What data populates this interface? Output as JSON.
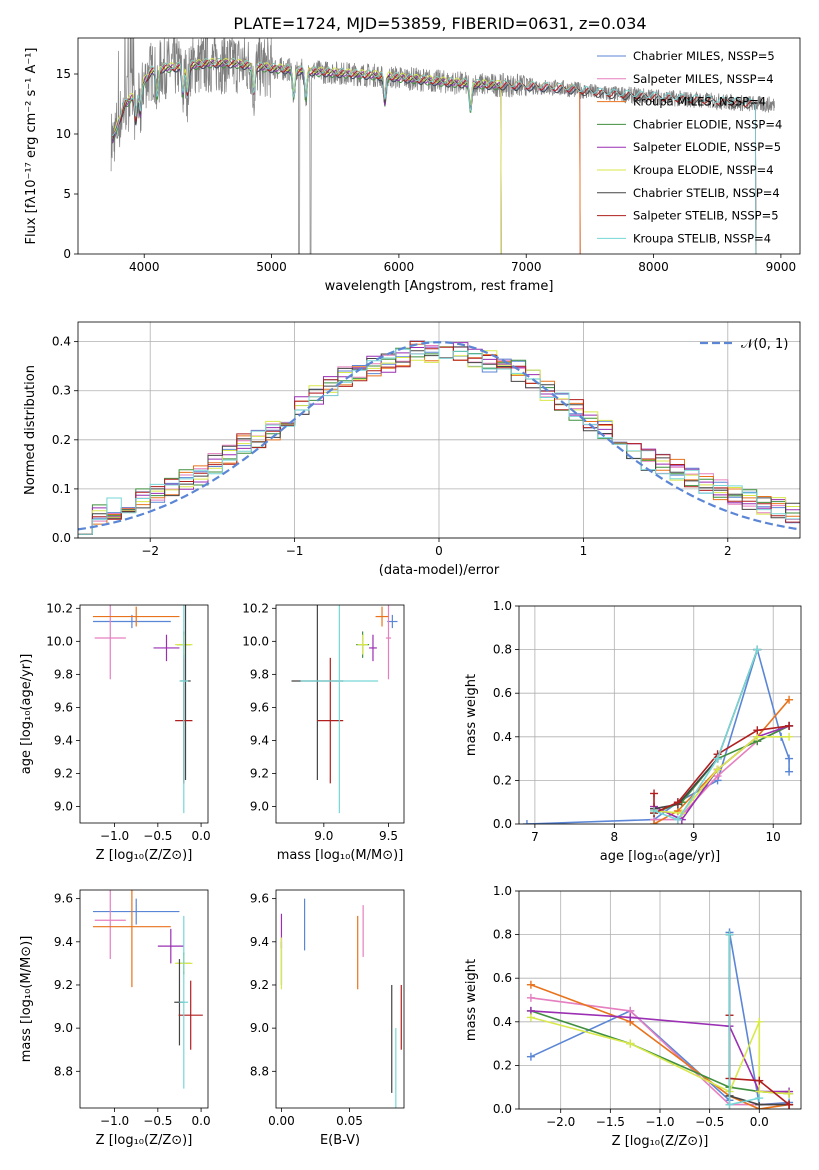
{
  "title": "PLATE=1724, MJD=53859, FIBERID=0631, z=0.034",
  "colors": {
    "Chabrier MILES": "#5b86d6",
    "Salpeter MILES": "#e57fbf",
    "Kroupa MILES": "#e8731c",
    "Chabrier ELODIE": "#3f8f3f",
    "Salpeter ELODIE": "#9a2fb3",
    "Kroupa ELODIE": "#d9e84a",
    "Chabrier STELIB": "#444444",
    "Salpeter STELIB": "#b01e1e",
    "Kroupa STELIB": "#77d6d6",
    "data": "#7f7f7f",
    "normal": "#5b86d6"
  },
  "chart_data": [
    {
      "type": "line",
      "id": "spectrum",
      "xlabel": "wavelength [Angstrom, rest frame]",
      "ylabel": "Flux [f_λ10^-17 erg cm^-2 s^-1 A^-1]",
      "xlim": [
        3480,
        9150
      ],
      "ylim": [
        0,
        18
      ],
      "xticks": [
        4000,
        5000,
        6000,
        7000,
        8000,
        9000
      ],
      "yticks": [
        0,
        5,
        10,
        15
      ],
      "legend_position": "top-right",
      "legend": [
        {
          "name": "Chabrier MILES",
          "label": "Chabrier MILES, N_SSP=5"
        },
        {
          "name": "Salpeter MILES",
          "label": "Salpeter MILES, N_SSP=4"
        },
        {
          "name": "Kroupa MILES",
          "label": "Kroupa MILES, N_SSP=4"
        },
        {
          "name": "Chabrier ELODIE",
          "label": "Chabrier ELODIE, N_SSP=4"
        },
        {
          "name": "Salpeter ELODIE",
          "label": "Salpeter ELODIE, N_SSP=5"
        },
        {
          "name": "Kroupa ELODIE",
          "label": "Kroupa ELODIE, N_SSP=4"
        },
        {
          "name": "Chabrier STELIB",
          "label": "Chabrier STELIB, N_SSP=4"
        },
        {
          "name": "Salpeter STELIB",
          "label": "Salpeter STELIB, N_SSP=5"
        },
        {
          "name": "Kroupa STELIB",
          "label": "Kroupa STELIB, N_SSP=4"
        }
      ],
      "continuum": [
        [
          3750,
          9.5
        ],
        [
          3850,
          12.5
        ],
        [
          3950,
          13.5
        ],
        [
          4050,
          15.2
        ],
        [
          4150,
          15.5
        ],
        [
          4300,
          15.6
        ],
        [
          4500,
          15.9
        ],
        [
          4700,
          15.9
        ],
        [
          4900,
          15.6
        ],
        [
          5200,
          15.3
        ],
        [
          5500,
          15.1
        ],
        [
          5800,
          14.9
        ],
        [
          6100,
          14.6
        ],
        [
          6400,
          14.3
        ],
        [
          6700,
          14.1
        ],
        [
          7000,
          14.0
        ],
        [
          7300,
          13.8
        ],
        [
          7600,
          13.4
        ],
        [
          8000,
          13.1
        ],
        [
          8400,
          12.8
        ],
        [
          8800,
          12.5
        ],
        [
          9000,
          12.4
        ]
      ],
      "model_ranges": {
        "Chabrier MILES": [
          3750,
          7420
        ],
        "Salpeter MILES": [
          3750,
          7420
        ],
        "Kroupa MILES": [
          3750,
          7420
        ],
        "Chabrier ELODIE": [
          3750,
          6800
        ],
        "Salpeter ELODIE": [
          3750,
          6800
        ],
        "Kroupa ELODIE": [
          3750,
          6800
        ],
        "Chabrier STELIB": [
          3750,
          8800
        ],
        "Salpeter STELIB": [
          3750,
          8800
        ],
        "Kroupa STELIB": [
          3750,
          8800
        ]
      },
      "data_range": [
        3740,
        8950
      ]
    },
    {
      "type": "histogram",
      "id": "residuals",
      "xlabel": "(data-model)/error",
      "ylabel": "Normed distribution",
      "xlim": [
        -2.5,
        2.5
      ],
      "ylim": [
        0,
        0.44
      ],
      "xticks": [
        -2,
        -1,
        0,
        1,
        2
      ],
      "yticks": [
        0.0,
        0.1,
        0.2,
        0.3,
        0.4
      ],
      "bin_width": 0.1,
      "legend_position": "top-right",
      "legend_label": "𝒩(0, 1)",
      "envelope": [
        0.03,
        0.05,
        0.06,
        0.07,
        0.08,
        0.09,
        0.1,
        0.12,
        0.13,
        0.15,
        0.17,
        0.19,
        0.2,
        0.22,
        0.24,
        0.27,
        0.29,
        0.31,
        0.33,
        0.34,
        0.35,
        0.36,
        0.37,
        0.38,
        0.38,
        0.38,
        0.38,
        0.37,
        0.36,
        0.35,
        0.34,
        0.32,
        0.3,
        0.28,
        0.26,
        0.24,
        0.22,
        0.2,
        0.18,
        0.16,
        0.15,
        0.14,
        0.12,
        0.11,
        0.1,
        0.09,
        0.08,
        0.07,
        0.06,
        0.05
      ]
    },
    {
      "type": "errorbar",
      "id": "age-vs-Z",
      "xlabel": "Z [log10(Z/Z⊙)]",
      "ylabel": "age [log10(age/yr)]",
      "xlim": [
        -1.4,
        0.08
      ],
      "ylim": [
        8.9,
        10.22
      ],
      "xticks": [
        -1.0,
        -0.5,
        0.0
      ],
      "yticks": [
        9.0,
        9.2,
        9.4,
        9.6,
        9.8,
        10.0,
        10.2
      ],
      "points": [
        {
          "name": "Chabrier MILES",
          "x": -0.8,
          "xerr": 0.45,
          "y": 10.12,
          "yerr": 0.04
        },
        {
          "name": "Salpeter MILES",
          "x": -1.05,
          "xerr": 0.18,
          "y": 10.02,
          "yerr": 0.25
        },
        {
          "name": "Kroupa MILES",
          "x": -0.75,
          "xerr": 0.5,
          "y": 10.15,
          "yerr": 0.06
        },
        {
          "name": "Chabrier ELODIE",
          "x": -0.2,
          "xerr": 0.08,
          "y": 9.98,
          "yerr": 0.08
        },
        {
          "name": "Salpeter ELODIE",
          "x": -0.4,
          "xerr": 0.15,
          "y": 9.96,
          "yerr": 0.08
        },
        {
          "name": "Kroupa ELODIE",
          "x": -0.2,
          "xerr": 0.1,
          "y": 9.98,
          "yerr": 0.06
        },
        {
          "name": "Chabrier STELIB",
          "x": -0.18,
          "xerr": 0.06,
          "y": 9.76,
          "yerr": 0.6
        },
        {
          "name": "Salpeter STELIB",
          "x": -0.2,
          "xerr": 0.1,
          "y": 9.52,
          "yerr": 0.38
        },
        {
          "name": "Kroupa STELIB",
          "x": -0.2,
          "xerr": 0.05,
          "y": 9.76,
          "yerr": 0.8
        }
      ]
    },
    {
      "type": "errorbar",
      "id": "age-vs-mass",
      "xlabel": "mass [log10(M/M⊙)]",
      "ylabel": "",
      "xlim": [
        8.63,
        9.62
      ],
      "ylim": [
        8.9,
        10.22
      ],
      "xticks": [
        9.0,
        9.5
      ],
      "yticks": [
        9.0,
        9.2,
        9.4,
        9.6,
        9.8,
        10.0,
        10.2
      ],
      "points": [
        {
          "name": "Chabrier MILES",
          "x": 9.53,
          "xerr": 0.04,
          "y": 10.12,
          "yerr": 0.04
        },
        {
          "name": "Salpeter MILES",
          "x": 9.5,
          "xerr": 0.02,
          "y": 10.02,
          "yerr": 0.25
        },
        {
          "name": "Kroupa MILES",
          "x": 9.45,
          "xerr": 0.05,
          "y": 10.15,
          "yerr": 0.06
        },
        {
          "name": "Chabrier ELODIE",
          "x": 9.3,
          "xerr": 0.05,
          "y": 9.98,
          "yerr": 0.08
        },
        {
          "name": "Salpeter ELODIE",
          "x": 9.38,
          "xerr": 0.03,
          "y": 9.96,
          "yerr": 0.08
        },
        {
          "name": "Kroupa ELODIE",
          "x": 9.3,
          "xerr": 0.04,
          "y": 9.98,
          "yerr": 0.06
        },
        {
          "name": "Chabrier STELIB",
          "x": 8.95,
          "xerr": 0.2,
          "y": 9.76,
          "yerr": 0.6
        },
        {
          "name": "Salpeter STELIB",
          "x": 9.05,
          "xerr": 0.1,
          "y": 9.52,
          "yerr": 0.38
        },
        {
          "name": "Kroupa STELIB",
          "x": 9.12,
          "xerr": 0.3,
          "y": 9.76,
          "yerr": 0.8
        }
      ]
    },
    {
      "type": "line",
      "id": "weight-vs-age",
      "xlabel": "age [log10(age/yr)]",
      "ylabel": "mass weight",
      "xlim": [
        6.8,
        10.35
      ],
      "ylim": [
        0,
        1
      ],
      "xticks": [
        7,
        8,
        9,
        10
      ],
      "yticks": [
        0.0,
        0.2,
        0.4,
        0.6,
        0.8,
        1.0
      ],
      "series": [
        {
          "name": "Chabrier MILES",
          "x": [
            6.9,
            8.5,
            8.8,
            9.3,
            9.8,
            10.1,
            10.2,
            10.2
          ],
          "y": [
            0.0,
            0.02,
            0.1,
            0.2,
            0.8,
            0.4,
            0.3,
            0.24
          ]
        },
        {
          "name": "Salpeter MILES",
          "x": [
            8.5,
            8.8,
            9.3,
            9.8,
            10.2
          ],
          "y": [
            0.02,
            0.02,
            0.22,
            0.38,
            0.45
          ]
        },
        {
          "name": "Kroupa MILES",
          "x": [
            8.5,
            8.8,
            9.3,
            9.8,
            10.2
          ],
          "y": [
            0.0,
            0.06,
            0.25,
            0.4,
            0.57
          ]
        },
        {
          "name": "Chabrier ELODIE",
          "x": [
            8.5,
            8.85,
            9.3,
            9.8,
            10.2
          ],
          "y": [
            0.05,
            0.1,
            0.3,
            0.38,
            0.45
          ]
        },
        {
          "name": "Salpeter ELODIE",
          "x": [
            8.5,
            8.85,
            9.3,
            9.8,
            10.2
          ],
          "y": [
            0.08,
            0.02,
            0.25,
            0.4,
            0.45
          ]
        },
        {
          "name": "Kroupa ELODIE",
          "x": [
            8.5,
            8.85,
            9.3,
            9.8,
            10.2
          ],
          "y": [
            0.06,
            0.05,
            0.25,
            0.4,
            0.4
          ]
        },
        {
          "name": "Chabrier STELIB",
          "x": [
            8.5,
            8.8,
            9.3,
            9.8
          ],
          "y": [
            0.07,
            0.09,
            0.3,
            0.8
          ]
        },
        {
          "name": "Salpeter STELIB",
          "x": [
            8.5,
            8.5,
            8.8,
            9.3,
            9.8,
            10.2
          ],
          "y": [
            0.14,
            0.05,
            0.1,
            0.32,
            0.43,
            0.45
          ]
        },
        {
          "name": "Kroupa STELIB",
          "x": [
            8.5,
            8.8,
            9.3,
            9.8
          ],
          "y": [
            0.06,
            0.02,
            0.3,
            0.8
          ]
        }
      ]
    },
    {
      "type": "errorbar",
      "id": "mass-vs-Z",
      "xlabel": "Z [log10(Z/Z⊙)]",
      "ylabel": "mass [log10(M/M⊙)]",
      "xlim": [
        -1.4,
        0.08
      ],
      "ylim": [
        8.63,
        9.64
      ],
      "xticks": [
        -1.0,
        -0.5,
        0.0
      ],
      "yticks": [
        8.8,
        9.0,
        9.2,
        9.4,
        9.6
      ],
      "points": [
        {
          "name": "Chabrier MILES",
          "x": -0.75,
          "xerr": 0.5,
          "y": 9.54,
          "yerr": 0.06
        },
        {
          "name": "Salpeter MILES",
          "x": -1.05,
          "xerr": 0.18,
          "y": 9.5,
          "yerr": 0.18
        },
        {
          "name": "Kroupa MILES",
          "x": -0.8,
          "xerr": 0.45,
          "y": 9.47,
          "yerr": 0.28
        },
        {
          "name": "Chabrier ELODIE",
          "x": -0.2,
          "xerr": 0.08,
          "y": 9.3,
          "yerr": 0.05
        },
        {
          "name": "Salpeter ELODIE",
          "x": -0.35,
          "xerr": 0.15,
          "y": 9.38,
          "yerr": 0.08
        },
        {
          "name": "Kroupa ELODIE",
          "x": -0.2,
          "xerr": 0.1,
          "y": 9.3,
          "yerr": 0.04
        },
        {
          "name": "Chabrier STELIB",
          "x": -0.25,
          "xerr": 0.06,
          "y": 9.12,
          "yerr": 0.2
        },
        {
          "name": "Salpeter STELIB",
          "x": -0.12,
          "xerr": 0.14,
          "y": 9.06,
          "yerr": 0.16
        },
        {
          "name": "Kroupa STELIB",
          "x": -0.2,
          "xerr": 0.05,
          "y": 9.12,
          "yerr": 0.4
        }
      ]
    },
    {
      "type": "errorbar",
      "id": "mass-vs-ebv",
      "xlabel": "E(B-V)",
      "ylabel": "",
      "xlim": [
        -0.004,
        0.09
      ],
      "ylim": [
        8.63,
        9.64
      ],
      "xticks": [
        0.0,
        0.05
      ],
      "yticks": [
        8.8,
        9.0,
        9.2,
        9.4,
        9.6
      ],
      "points": [
        {
          "name": "Chabrier MILES",
          "x": 0.017,
          "xerr": 0.0,
          "y": 9.48,
          "yerr": 0.12
        },
        {
          "name": "Salpeter MILES",
          "x": 0.06,
          "xerr": 0.0,
          "y": 9.45,
          "yerr": 0.12
        },
        {
          "name": "Kroupa MILES",
          "x": 0.056,
          "xerr": 0.0,
          "y": 9.35,
          "yerr": 0.17
        },
        {
          "name": "Chabrier ELODIE",
          "x": 0.0,
          "xerr": 0.0,
          "y": 9.3,
          "yerr": 0.1
        },
        {
          "name": "Salpeter ELODIE",
          "x": 0.0,
          "xerr": 0.0,
          "y": 9.45,
          "yerr": 0.08
        },
        {
          "name": "Kroupa ELODIE",
          "x": 0.0,
          "xerr": 0.0,
          "y": 9.3,
          "yerr": 0.12
        },
        {
          "name": "Chabrier STELIB",
          "x": 0.081,
          "xerr": 0.0,
          "y": 8.95,
          "yerr": 0.25
        },
        {
          "name": "Salpeter STELIB",
          "x": 0.088,
          "xerr": 0.0,
          "y": 9.05,
          "yerr": 0.15
        },
        {
          "name": "Kroupa STELIB",
          "x": 0.084,
          "xerr": 0.0,
          "y": 8.8,
          "yerr": 0.2
        }
      ]
    },
    {
      "type": "line",
      "id": "weight-vs-Z",
      "xlabel": "Z [log10(Z/Z⊙)]",
      "ylabel": "mass weight",
      "xlim": [
        -2.42,
        0.42
      ],
      "ylim": [
        0,
        1
      ],
      "xticks": [
        -2.0,
        -1.5,
        -1.0,
        -0.5,
        0.0
      ],
      "yticks": [
        0.0,
        0.2,
        0.4,
        0.6,
        0.8,
        1.0
      ],
      "series": [
        {
          "name": "Chabrier MILES",
          "x": [
            -2.3,
            -1.3,
            -0.3,
            -0.3,
            0.0,
            0.3
          ],
          "y": [
            0.24,
            0.45,
            0.04,
            0.81,
            0.02,
            0.03
          ]
        },
        {
          "name": "Salpeter MILES",
          "x": [
            -2.3,
            -1.3,
            -0.3,
            0.0,
            0.3
          ],
          "y": [
            0.51,
            0.45,
            0.02,
            0.02,
            0.02
          ]
        },
        {
          "name": "Kroupa MILES",
          "x": [
            -2.3,
            -1.3,
            -0.3,
            0.0,
            0.3
          ],
          "y": [
            0.57,
            0.4,
            0.06,
            0.0,
            0.02
          ]
        },
        {
          "name": "Chabrier ELODIE",
          "x": [
            -2.3,
            -1.3,
            -0.3,
            0.0,
            0.3
          ],
          "y": [
            0.45,
            0.3,
            0.1,
            0.08,
            0.07
          ]
        },
        {
          "name": "Salpeter ELODIE",
          "x": [
            -2.3,
            -1.3,
            -0.3,
            0.0,
            0.3
          ],
          "y": [
            0.45,
            0.42,
            0.38,
            0.08,
            0.08
          ]
        },
        {
          "name": "Kroupa ELODIE",
          "x": [
            -2.3,
            -1.3,
            -0.3,
            0.0,
            0.0,
            0.3
          ],
          "y": [
            0.42,
            0.3,
            0.08,
            0.4,
            0.08,
            0.07
          ]
        },
        {
          "name": "Chabrier STELIB",
          "x": [
            -0.3,
            -0.3,
            0.0,
            0.3
          ],
          "y": [
            0.8,
            0.06,
            0.02,
            0.02
          ]
        },
        {
          "name": "Salpeter STELIB",
          "x": [
            -0.3,
            -0.3,
            0.0,
            0.3
          ],
          "y": [
            0.43,
            0.14,
            0.13,
            0.02
          ]
        },
        {
          "name": "Kroupa STELIB",
          "x": [
            -0.3,
            -0.3,
            0.0
          ],
          "y": [
            0.8,
            0.02,
            0.05
          ]
        }
      ]
    }
  ]
}
